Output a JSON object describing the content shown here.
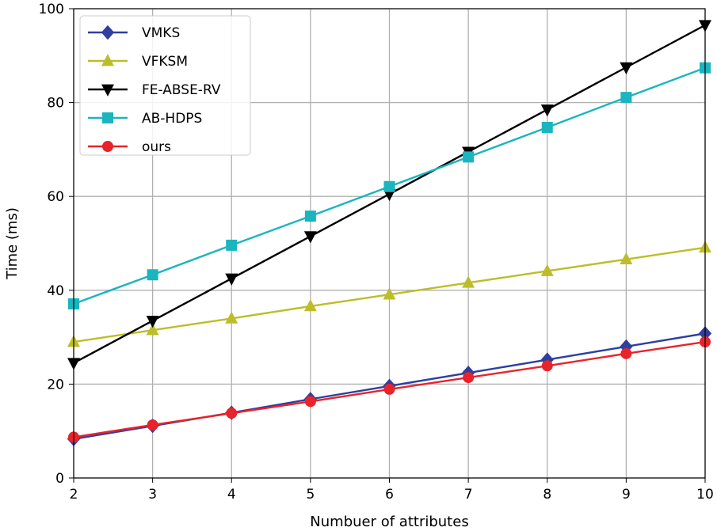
{
  "chart_data": {
    "type": "line",
    "title": "",
    "xlabel": "Numbuer of attributes",
    "ylabel": "Time (ms)",
    "xlim": [
      2,
      10
    ],
    "ylim": [
      0,
      100
    ],
    "x": [
      2,
      3,
      4,
      5,
      6,
      7,
      8,
      9,
      10
    ],
    "xticks": [
      "2",
      "3",
      "4",
      "5",
      "6",
      "7",
      "8",
      "9",
      "10"
    ],
    "yticks": [
      "0",
      "20",
      "40",
      "60",
      "80",
      "100"
    ],
    "grid": true,
    "legend_position": "top-left",
    "series": [
      {
        "name": "VMKS",
        "color": "#2e3fa0",
        "marker": "diamond",
        "values": [
          8.3,
          11.1,
          13.9,
          16.8,
          19.6,
          22.4,
          25.2,
          28.0,
          30.8
        ]
      },
      {
        "name": "VFKSM",
        "color": "#bdbd2a",
        "marker": "triangle-up",
        "values": [
          29.0,
          31.5,
          34.0,
          36.6,
          39.1,
          41.6,
          44.1,
          46.6,
          49.1
        ]
      },
      {
        "name": "FE-ABSE-RV",
        "color": "#000000",
        "marker": "triangle-down",
        "values": [
          24.5,
          33.5,
          42.5,
          51.5,
          60.5,
          69.5,
          78.5,
          87.5,
          96.5
        ]
      },
      {
        "name": "AB-HDPS",
        "color": "#1ab5be",
        "marker": "square",
        "values": [
          37.1,
          43.3,
          49.6,
          55.8,
          62.1,
          68.4,
          74.7,
          81.1,
          87.4
        ]
      },
      {
        "name": "ours",
        "color": "#e8232a",
        "marker": "circle",
        "values": [
          8.7,
          11.3,
          13.8,
          16.3,
          18.9,
          21.4,
          23.9,
          26.5,
          29.0
        ]
      }
    ]
  }
}
